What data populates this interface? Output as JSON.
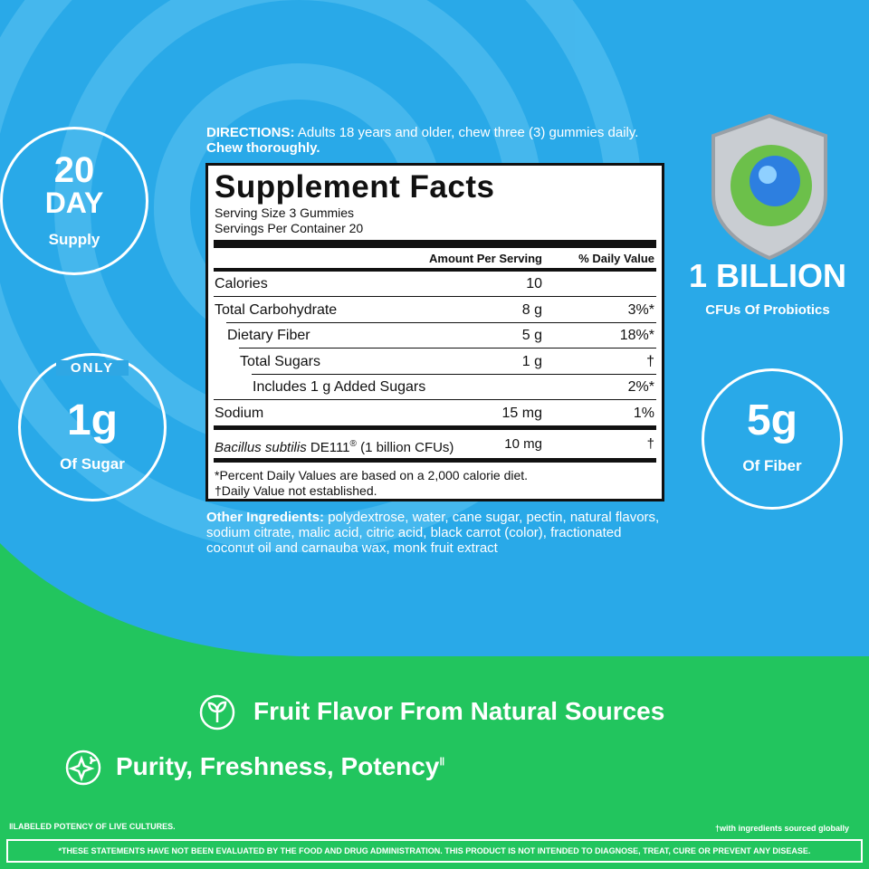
{
  "badges": {
    "supply": {
      "big": "20",
      "mid": "DAY",
      "small": "Supply"
    },
    "sugar": {
      "top": "ONLY",
      "big": "1g",
      "small": "Of Sugar"
    },
    "probiotics": {
      "big": "1 BILLION",
      "small": "CFUs Of Probiotics"
    },
    "fiber": {
      "big": "5g",
      "small": "Of Fiber"
    }
  },
  "directions": {
    "label": "DIRECTIONS:",
    "text": "Adults 18 years and older, chew three (3) gummies daily.",
    "emphasis": "Chew thoroughly."
  },
  "facts": {
    "title": "Supplement Facts",
    "serving_size": "Serving Size 3 Gummies",
    "servings_per_container": "Servings Per Container 20",
    "header": {
      "amount": "Amount Per Serving",
      "dv": "% Daily Value"
    },
    "rows": [
      {
        "name": "Calories",
        "amount": "10"
      },
      {
        "name": "Total Carbohydrate",
        "amount": "8 g",
        "dv": "3%*"
      },
      {
        "name": "Dietary Fiber",
        "amount": "5 g",
        "dv": "18%*"
      },
      {
        "name": "Total Sugars",
        "amount": "1 g",
        "dv": "†"
      },
      {
        "name": "Includes 1 g Added Sugars",
        "dv": "2%*"
      },
      {
        "name": "Sodium",
        "amount": "15 mg",
        "dv": "1%"
      }
    ],
    "culture": {
      "name_italic": "Bacillus subtilis",
      "name": "DE111",
      "mark": "®",
      "note": "(1 billion CFUs)",
      "amount": "10 mg",
      "dv": "†"
    },
    "footnotes": [
      "*Percent Daily Values are based on a 2,000 calorie diet.",
      "†Daily Value not established."
    ]
  },
  "other_ingredients": {
    "label": "Other Ingredients:",
    "text": "polydextrose, water, cane sugar, pectin, natural flavors, sodium citrate, malic acid, citric acid, black carrot (color), fractionated coconut oil and carnauba wax, monk fruit extract"
  },
  "features": [
    {
      "text": "Fruit Flavor From Natural Sources"
    },
    {
      "text": "Purity, Freshness, Potency",
      "mark": "‖"
    }
  ],
  "footer": {
    "left": "‖LABELED POTENCY OF LIVE CULTURES.",
    "right": "†with ingredients sourced globally",
    "disclaimer": "*THESE STATEMENTS HAVE NOT BEEN EVALUATED BY THE FOOD AND DRUG ADMINISTRATION. THIS PRODUCT IS NOT INTENDED TO DIAGNOSE, TREAT, CURE OR PREVENT ANY DISEASE."
  }
}
